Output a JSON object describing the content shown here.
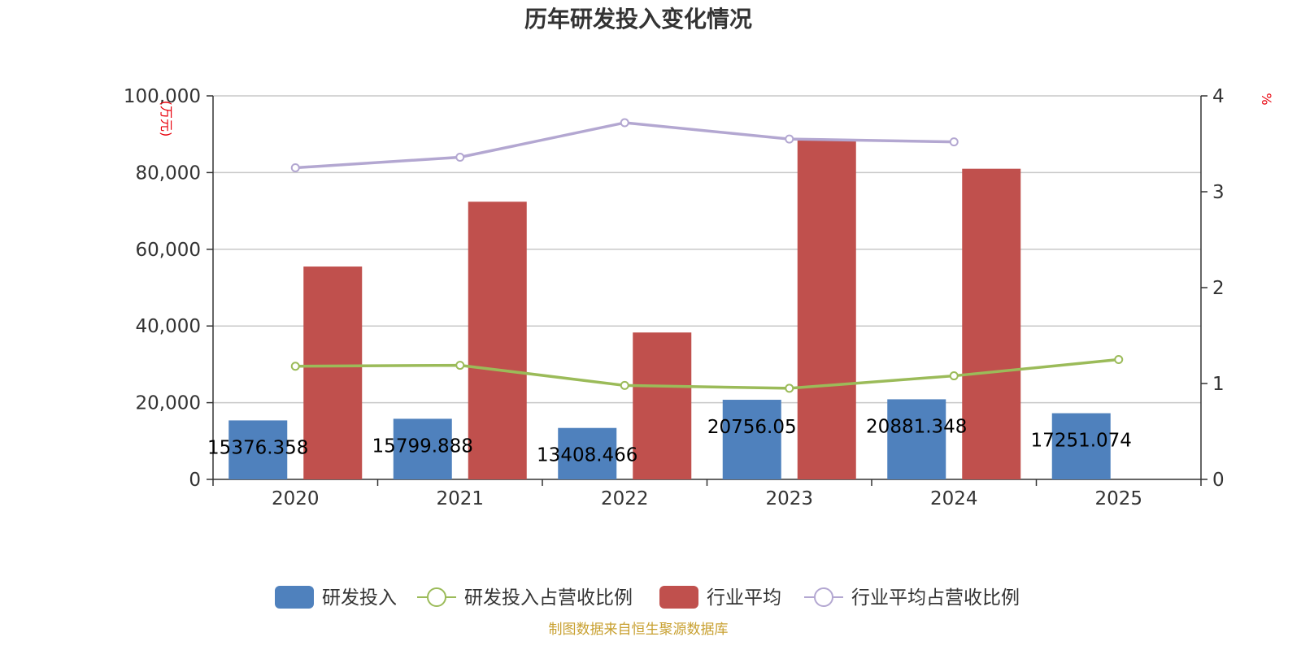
{
  "chart_data": {
    "type": "bar",
    "title": "历年研发投入变化情况",
    "categories": [
      "2020",
      "2021",
      "2022",
      "2023",
      "2024",
      "2025"
    ],
    "y_left": {
      "label": "(万元)",
      "min": 0,
      "max": 100000,
      "ticks": [
        "0",
        "20,000",
        "40,000",
        "60,000",
        "80,000",
        "100,000"
      ]
    },
    "y_right": {
      "label": "%",
      "min": 0,
      "max": 4,
      "ticks": [
        "0",
        "1",
        "2",
        "3",
        "4"
      ]
    },
    "grid": true,
    "legend_position": "bottom",
    "series": [
      {
        "name": "研发投入",
        "type": "bar",
        "axis": "left",
        "color": "#4f81bd",
        "values": [
          15376.358,
          15799.888,
          13408.466,
          20756.05,
          20881.348,
          17251.074
        ],
        "labels": [
          "15376.358",
          "15799.888",
          "13408.466",
          "20756.05",
          "20881.348",
          "17251.074"
        ]
      },
      {
        "name": "研发投入占营收比例",
        "type": "line",
        "axis": "right",
        "color": "#9bbb59",
        "values": [
          1.18,
          1.19,
          0.98,
          0.95,
          1.08,
          1.25
        ]
      },
      {
        "name": "行业平均",
        "type": "bar",
        "axis": "left",
        "color": "#c0504d",
        "values": [
          55500,
          72400,
          38300,
          88600,
          81000,
          null
        ]
      },
      {
        "name": "行业平均占营收比例",
        "type": "line",
        "axis": "right",
        "color": "#b3a7d1",
        "values": [
          3.25,
          3.36,
          3.72,
          3.55,
          3.52,
          null
        ]
      }
    ],
    "source": "制图数据来自恒生聚源数据库"
  }
}
